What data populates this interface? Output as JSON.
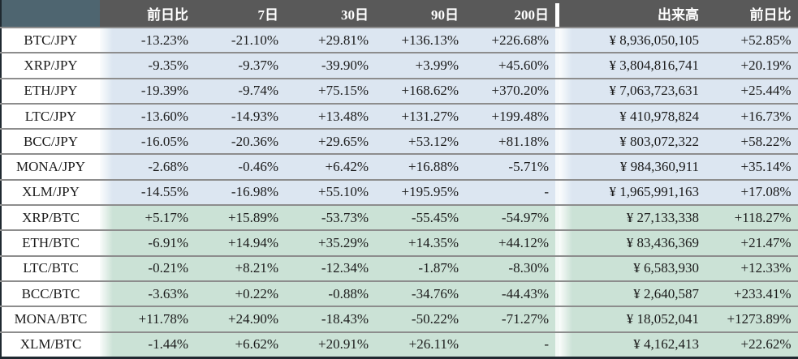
{
  "table": {
    "header": {
      "corner": "",
      "period_cols": [
        "前日比",
        "7日",
        "30日",
        "90日",
        "200日"
      ],
      "volume_col": "出来高",
      "change_col": "前日比"
    },
    "colors": {
      "header_bg": "#595959",
      "corner_bg": "#4e6570",
      "header_text": "#ffffff",
      "jpy_row_bg": "#dce6f1",
      "btc_row_bg": "#cbe2d6",
      "row_border": "#8d8d8d",
      "outer_border": "#1f2930",
      "text": "#1a1a1a"
    }
  },
  "chart_data": {
    "type": "table",
    "columns": [
      "",
      "前日比",
      "7日",
      "30日",
      "90日",
      "200日",
      "出来高",
      "前日比"
    ],
    "rows": [
      {
        "pair": "BTC/JPY",
        "group": "jpy",
        "changes": [
          "-13.23%",
          "-21.10%",
          "+29.81%",
          "+136.13%",
          "+226.68%"
        ],
        "volume": "¥ 8,936,050,105",
        "daily_change": "+52.85%"
      },
      {
        "pair": "XRP/JPY",
        "group": "jpy",
        "changes": [
          "-9.35%",
          "-9.37%",
          "-39.90%",
          "+3.99%",
          "+45.60%"
        ],
        "volume": "¥ 3,804,816,741",
        "daily_change": "+20.19%"
      },
      {
        "pair": "ETH/JPY",
        "group": "jpy",
        "changes": [
          "-19.39%",
          "-9.74%",
          "+75.15%",
          "+168.62%",
          "+370.20%"
        ],
        "volume": "¥ 7,063,723,631",
        "daily_change": "+25.44%"
      },
      {
        "pair": "LTC/JPY",
        "group": "jpy",
        "changes": [
          "-13.60%",
          "-14.93%",
          "+13.48%",
          "+131.27%",
          "+199.48%"
        ],
        "volume": "¥ 410,978,824",
        "daily_change": "+16.73%"
      },
      {
        "pair": "BCC/JPY",
        "group": "jpy",
        "changes": [
          "-16.05%",
          "-20.36%",
          "+29.65%",
          "+53.12%",
          "+81.18%"
        ],
        "volume": "¥ 803,072,322",
        "daily_change": "+58.22%"
      },
      {
        "pair": "MONA/JPY",
        "group": "jpy",
        "changes": [
          "-2.68%",
          "-0.46%",
          "+6.42%",
          "+16.88%",
          "-5.71%"
        ],
        "volume": "¥ 984,360,911",
        "daily_change": "+35.14%"
      },
      {
        "pair": "XLM/JPY",
        "group": "jpy",
        "changes": [
          "-14.55%",
          "-16.98%",
          "+55.10%",
          "+195.95%",
          "-"
        ],
        "volume": "¥ 1,965,991,163",
        "daily_change": "+17.08%"
      },
      {
        "pair": "XRP/BTC",
        "group": "btc",
        "changes": [
          "+5.17%",
          "+15.89%",
          "-53.73%",
          "-55.45%",
          "-54.97%"
        ],
        "volume": "¥ 27,133,338",
        "daily_change": "+118.27%"
      },
      {
        "pair": "ETH/BTC",
        "group": "btc",
        "changes": [
          "-6.91%",
          "+14.94%",
          "+35.29%",
          "+14.35%",
          "+44.12%"
        ],
        "volume": "¥ 83,436,369",
        "daily_change": "+21.47%"
      },
      {
        "pair": "LTC/BTC",
        "group": "btc",
        "changes": [
          "-0.21%",
          "+8.21%",
          "-12.34%",
          "-1.87%",
          "-8.30%"
        ],
        "volume": "¥ 6,583,930",
        "daily_change": "+12.33%"
      },
      {
        "pair": "BCC/BTC",
        "group": "btc",
        "changes": [
          "-3.63%",
          "+0.22%",
          "-0.88%",
          "-34.76%",
          "-44.43%"
        ],
        "volume": "¥ 2,640,587",
        "daily_change": "+233.41%"
      },
      {
        "pair": "MONA/BTC",
        "group": "btc",
        "changes": [
          "+11.78%",
          "+24.90%",
          "-18.43%",
          "-50.22%",
          "-71.27%"
        ],
        "volume": "¥ 18,052,041",
        "daily_change": "+1273.89%"
      },
      {
        "pair": "XLM/BTC",
        "group": "btc",
        "changes": [
          "-1.44%",
          "+6.62%",
          "+20.91%",
          "+26.11%",
          "-"
        ],
        "volume": "¥ 4,162,413",
        "daily_change": "+22.62%"
      }
    ]
  }
}
